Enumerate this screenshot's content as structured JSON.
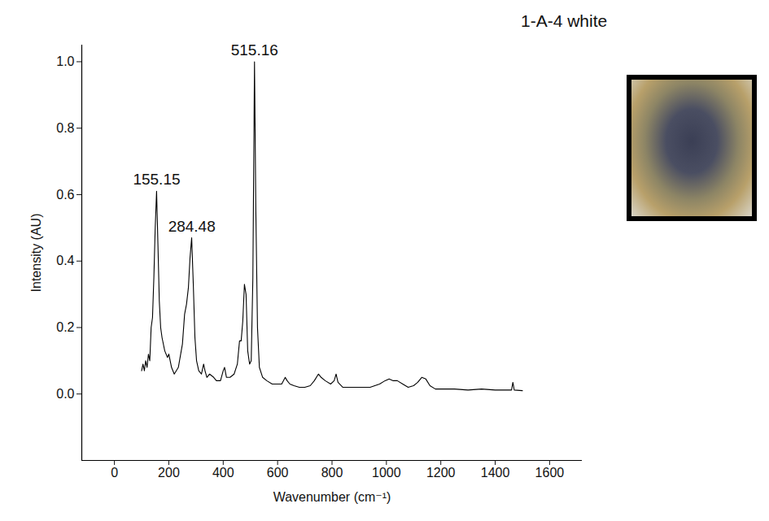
{
  "chart_data": {
    "type": "line",
    "title": "1-A-4 white",
    "x_label": "Wavenumber (cm⁻¹)",
    "y_label": "Intensity (AU)",
    "xlim": [
      -120,
      1720
    ],
    "xticks": [
      0,
      200,
      400,
      600,
      800,
      1000,
      1200,
      1400,
      1600
    ],
    "ylim": [
      -0.2,
      1.05
    ],
    "yticks": [
      {
        "value": 0,
        "label": "0.0"
      },
      {
        "value": 0.2,
        "label": "0.2"
      },
      {
        "value": 0.4,
        "label": "0.4"
      },
      {
        "value": 0.6,
        "label": "0.6"
      },
      {
        "value": 0.8,
        "label": "0.8"
      },
      {
        "value": 1.0,
        "label": "1.0"
      }
    ],
    "grid": false,
    "color": "#000000",
    "x": [
      100,
      105,
      110,
      115,
      120,
      125,
      130,
      135,
      140,
      145,
      150,
      155,
      160,
      165,
      170,
      175,
      185,
      195,
      200,
      210,
      220,
      235,
      250,
      258,
      265,
      272,
      278,
      284,
      290,
      296,
      302,
      310,
      320,
      328,
      333,
      340,
      350,
      365,
      375,
      390,
      400,
      405,
      412,
      425,
      440,
      452,
      460,
      466,
      472,
      478,
      484,
      490,
      497,
      503,
      509,
      515,
      520,
      526,
      533,
      545,
      560,
      580,
      600,
      615,
      628,
      635,
      645,
      660,
      680,
      700,
      720,
      735,
      750,
      760,
      775,
      795,
      808,
      815,
      822,
      840,
      870,
      900,
      940,
      975,
      995,
      1010,
      1025,
      1040,
      1060,
      1080,
      1100,
      1115,
      1130,
      1145,
      1160,
      1180,
      1210,
      1250,
      1300,
      1350,
      1400,
      1440,
      1460,
      1465,
      1470,
      1500
    ],
    "values": [
      0.07,
      0.09,
      0.07,
      0.1,
      0.08,
      0.12,
      0.1,
      0.2,
      0.23,
      0.35,
      0.5,
      0.61,
      0.45,
      0.28,
      0.2,
      0.17,
      0.13,
      0.11,
      0.12,
      0.08,
      0.06,
      0.08,
      0.15,
      0.24,
      0.27,
      0.32,
      0.41,
      0.47,
      0.33,
      0.17,
      0.1,
      0.07,
      0.06,
      0.09,
      0.07,
      0.05,
      0.06,
      0.05,
      0.04,
      0.04,
      0.07,
      0.08,
      0.05,
      0.05,
      0.06,
      0.09,
      0.16,
      0.16,
      0.22,
      0.33,
      0.3,
      0.13,
      0.09,
      0.1,
      0.35,
      1.0,
      0.55,
      0.2,
      0.08,
      0.05,
      0.04,
      0.03,
      0.03,
      0.03,
      0.05,
      0.04,
      0.03,
      0.025,
      0.02,
      0.02,
      0.025,
      0.04,
      0.06,
      0.05,
      0.04,
      0.03,
      0.04,
      0.06,
      0.035,
      0.02,
      0.02,
      0.02,
      0.02,
      0.03,
      0.04,
      0.045,
      0.04,
      0.04,
      0.03,
      0.02,
      0.025,
      0.035,
      0.05,
      0.045,
      0.025,
      0.015,
      0.015,
      0.015,
      0.012,
      0.015,
      0.012,
      0.012,
      0.012,
      0.035,
      0.012,
      0.01
    ],
    "annotations": [
      {
        "text": "155.15",
        "x": 155.15,
        "y": 0.61
      },
      {
        "text": "284.48",
        "x": 284.48,
        "y": 0.47
      },
      {
        "text": "515.16",
        "x": 515.16,
        "y": 1.0
      }
    ]
  }
}
